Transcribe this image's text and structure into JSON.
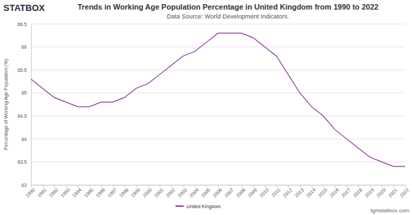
{
  "chart_data": {
    "type": "line",
    "title": "Trends in Working Age Population Percentage in United Kingdom from 1990 to 2022",
    "subtitle": "Data Source: World Development Indicators.",
    "y_label": "Percentage of Working Age Population (%)",
    "annotations": [
      "STATBOX",
      "tgmstatbox.com"
    ],
    "x": [
      1990,
      1991,
      1992,
      1993,
      1994,
      1995,
      1996,
      1997,
      1998,
      1999,
      2000,
      2001,
      2002,
      2003,
      2004,
      2005,
      2006,
      2007,
      2008,
      2009,
      2010,
      2011,
      2012,
      2013,
      2014,
      2015,
      2016,
      2017,
      2018,
      2019,
      2020,
      2021,
      2022
    ],
    "series": [
      {
        "name": "United Kingdom",
        "color": "#8b3a9c",
        "values": [
          65.3,
          65.1,
          64.9,
          64.8,
          64.7,
          64.7,
          64.8,
          64.8,
          64.9,
          65.1,
          65.2,
          65.4,
          65.6,
          65.8,
          65.9,
          66.1,
          66.3,
          66.3,
          66.3,
          66.2,
          66.0,
          65.8,
          65.4,
          65.0,
          64.7,
          64.5,
          64.2,
          64.0,
          63.8,
          63.6,
          63.5,
          63.4,
          63.4
        ]
      }
    ],
    "xlim": [
      1990,
      2022
    ],
    "xticks": [
      1990,
      1991,
      1992,
      1993,
      1994,
      1995,
      1996,
      1997,
      1998,
      1999,
      2000,
      2001,
      2002,
      2003,
      2004,
      2005,
      2006,
      2007,
      2008,
      2009,
      2010,
      2011,
      2012,
      2013,
      2014,
      2015,
      2016,
      2017,
      2018,
      2019,
      2020,
      2021,
      2022
    ],
    "ylim": [
      63,
      66.5
    ],
    "yticks": [
      63,
      63.5,
      64,
      64.5,
      65,
      65.5,
      66,
      66.5
    ],
    "grid": true,
    "legend": "bottom"
  }
}
